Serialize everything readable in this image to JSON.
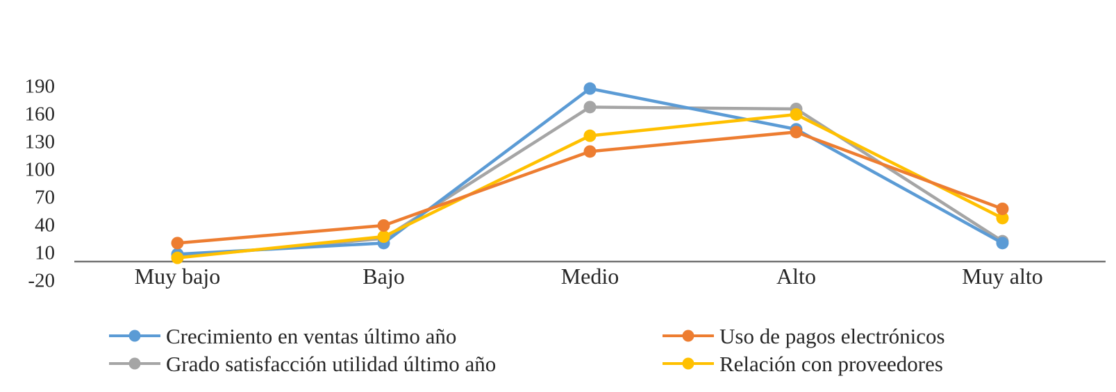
{
  "chart_data": {
    "type": "line",
    "title": "",
    "xlabel": "",
    "ylabel": "",
    "categories": [
      "Muy bajo",
      "Bajo",
      "Medio",
      "Alto",
      "Muy alto"
    ],
    "series": [
      {
        "name": "Crecimiento en ventas último año",
        "color": "#5B9BD5",
        "values": [
          8,
          20,
          187,
          143,
          20
        ]
      },
      {
        "name": "Uso de pagos electrónicos",
        "color": "#ED7D31",
        "values": [
          20,
          39,
          119,
          140,
          57
        ]
      },
      {
        "name": "Grado satisfacción utilidad último año",
        "color": "#A5A5A5",
        "values": [
          5,
          25,
          167,
          165,
          22
        ]
      },
      {
        "name": "Relación con proveedores",
        "color": "#FFC000",
        "values": [
          4,
          27,
          136,
          159,
          47
        ]
      }
    ],
    "y_ticks": [
      190,
      160,
      130,
      100,
      70,
      40,
      10,
      -20
    ],
    "ylim": [
      -20,
      205
    ],
    "axis_crosses_at": 0,
    "grid": false,
    "legend_position": "bottom",
    "draw_order": [
      2,
      0,
      3,
      1
    ]
  },
  "colors": {
    "axis_line": "#737373",
    "tick_text": "#262626",
    "legend_text": "#262626",
    "background": "#FFFFFF"
  }
}
